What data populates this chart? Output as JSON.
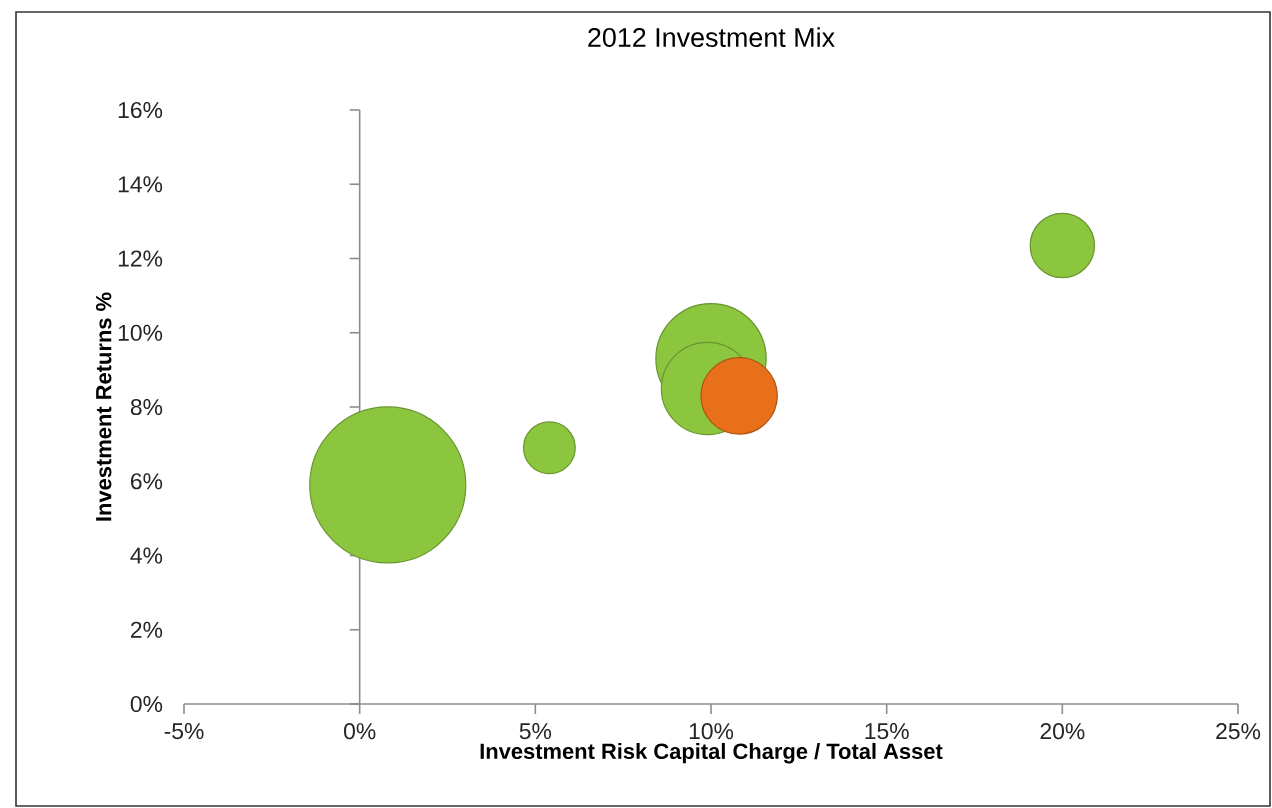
{
  "chart_data": {
    "type": "bubble",
    "title": "2012 Investment Mix",
    "xlabel": "Investment Risk Capital Charge / Total Asset",
    "ylabel": "Investment Returns %",
    "x": [
      0.8,
      5.4,
      10.0,
      9.9,
      10.8,
      20.0
    ],
    "values": [
      5.9,
      6.9,
      9.3,
      8.5,
      8.3,
      12.35
    ],
    "sizes": [
      1,
      0.11,
      0.5,
      0.35,
      0.24,
      0.17
    ],
    "colors": [
      "#8cc63f",
      "#8cc63f",
      "#8cc63f",
      "#8cc63f",
      "#e8701a",
      "#8cc63f"
    ],
    "xlim": [
      -5,
      25
    ],
    "xticks": [
      {
        "value": -5,
        "label": "-5%"
      },
      {
        "value": 0,
        "label": "0%"
      },
      {
        "value": 5,
        "label": "5%"
      },
      {
        "value": 10,
        "label": "10%"
      },
      {
        "value": 15,
        "label": "15%"
      },
      {
        "value": 20,
        "label": "20%"
      },
      {
        "value": 25,
        "label": "25%"
      }
    ],
    "ylim": [
      0,
      16
    ],
    "yticks": [
      {
        "value": 0,
        "label": "0%"
      },
      {
        "value": 2,
        "label": "2%"
      },
      {
        "value": 4,
        "label": "4%"
      },
      {
        "value": 6,
        "label": "6%"
      },
      {
        "value": 8,
        "label": "8%"
      },
      {
        "value": 10,
        "label": "10%"
      },
      {
        "value": 12,
        "label": "12%"
      },
      {
        "value": 14,
        "label": "14%"
      },
      {
        "value": 16,
        "label": "16%"
      }
    ]
  }
}
